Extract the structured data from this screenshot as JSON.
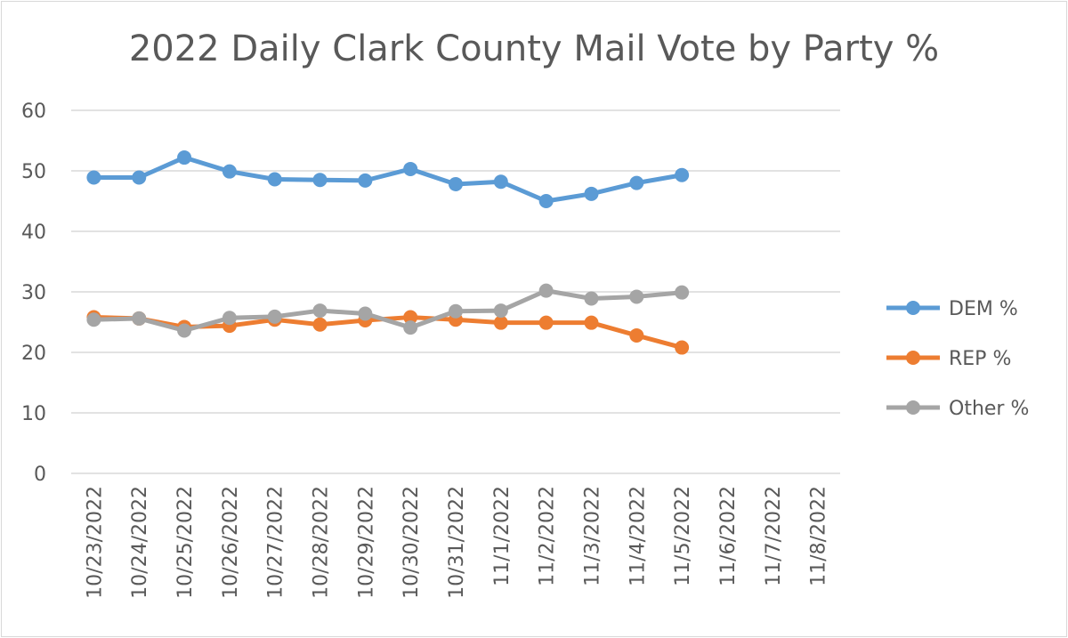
{
  "chart_data": {
    "type": "line",
    "title": "2022 Daily Clark County Mail Vote by Party %",
    "xlabel": "",
    "ylabel": "",
    "ylim": [
      0,
      60
    ],
    "yticks": [
      0,
      10,
      20,
      30,
      40,
      50,
      60
    ],
    "grid": true,
    "legend_position": "right",
    "categories": [
      "10/23/2022",
      "10/24/2022",
      "10/25/2022",
      "10/26/2022",
      "10/27/2022",
      "10/28/2022",
      "10/29/2022",
      "10/30/2022",
      "10/31/2022",
      "11/1/2022",
      "11/2/2022",
      "11/3/2022",
      "11/4/2022",
      "11/5/2022",
      "11/6/2022",
      "11/7/2022",
      "11/8/2022"
    ],
    "series": [
      {
        "name": "DEM %",
        "color": "#5b9bd5",
        "values": [
          48.9,
          48.9,
          52.2,
          49.9,
          48.6,
          48.5,
          48.4,
          50.3,
          47.8,
          48.2,
          45.0,
          46.2,
          48.0,
          49.3,
          null,
          null,
          null
        ]
      },
      {
        "name": "REP %",
        "color": "#ed7d31",
        "values": [
          25.8,
          25.6,
          24.2,
          24.4,
          25.4,
          24.6,
          25.3,
          25.8,
          25.4,
          24.9,
          24.9,
          24.9,
          22.8,
          20.8,
          null,
          null,
          null
        ]
      },
      {
        "name": "Other %",
        "color": "#a5a5a5",
        "values": [
          25.4,
          25.6,
          23.6,
          25.7,
          25.9,
          26.9,
          26.4,
          24.1,
          26.8,
          26.9,
          30.2,
          28.9,
          29.2,
          29.9,
          null,
          null,
          null
        ]
      }
    ]
  }
}
